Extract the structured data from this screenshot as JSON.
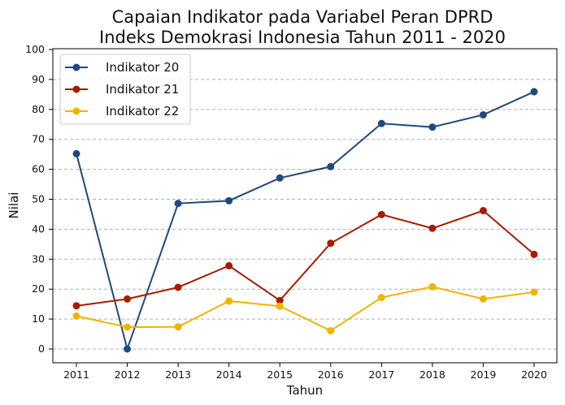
{
  "chart_data": {
    "type": "line",
    "title": "Capaian Indikator pada Variabel Peran DPRD",
    "subtitle": "Indeks Demokrasi Indonesia Tahun 2011 - 2020",
    "xlabel": "Tahun",
    "ylabel": "Nilai",
    "x": [
      2011,
      2012,
      2013,
      2014,
      2015,
      2016,
      2017,
      2018,
      2019,
      2020
    ],
    "ylim": [
      0,
      100
    ],
    "yticks": [
      0,
      10,
      20,
      30,
      40,
      50,
      60,
      70,
      80,
      90,
      100
    ],
    "grid": "horizontal dashed",
    "legend_position": "top-left",
    "series": [
      {
        "name": "Indikator 20",
        "color": "#1f497d",
        "values": [
          65.2,
          0,
          48.6,
          49.5,
          57.1,
          60.9,
          75.3,
          74.1,
          78.2,
          85.9
        ]
      },
      {
        "name": "Indikator 21",
        "color": "#a61c00",
        "values": [
          14.4,
          16.7,
          20.6,
          27.8,
          16.2,
          35.3,
          44.9,
          40.3,
          46.2,
          31.6
        ]
      },
      {
        "name": "Indikator 22",
        "color": "#f0b400",
        "values": [
          11.0,
          7.3,
          7.4,
          16.0,
          14.3,
          6.1,
          17.2,
          20.8,
          16.7,
          19.0
        ]
      }
    ]
  }
}
